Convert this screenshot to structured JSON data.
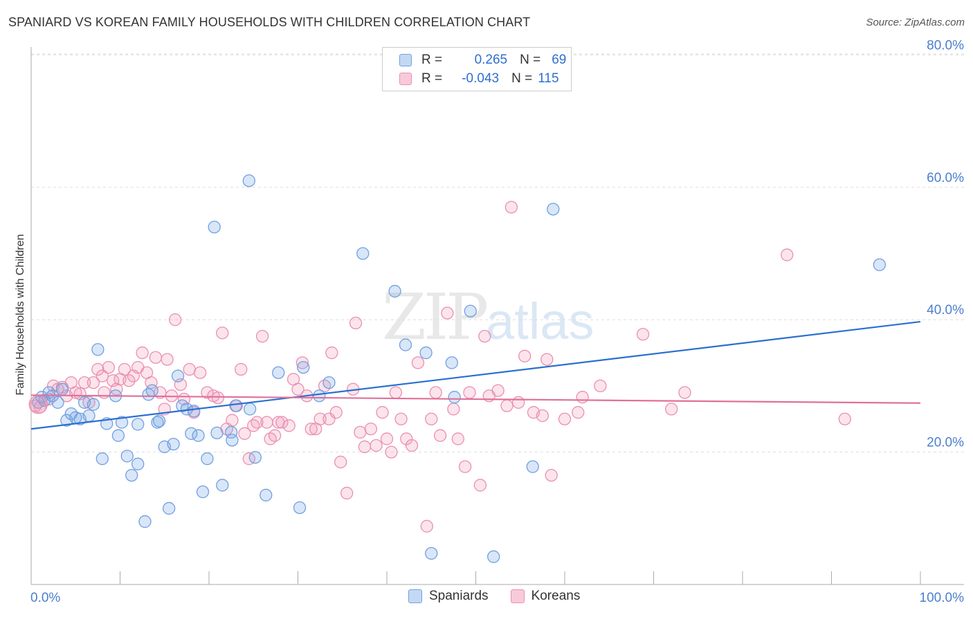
{
  "title": "SPANIARD VS KOREAN FAMILY HOUSEHOLDS WITH CHILDREN CORRELATION CHART",
  "source": "Source: ZipAtlas.com",
  "watermark": {
    "zip": "ZIP",
    "atlas": "atlas"
  },
  "legend": {
    "rows": [
      {
        "r_label": "R =",
        "r_value": "0.265",
        "n_label": "N =",
        "n_value": "69",
        "color": "#6fa0e0"
      },
      {
        "r_label": "R =",
        "r_value": "-0.043",
        "n_label": "N =",
        "n_value": "115",
        "color": "#eb8fb0"
      }
    ]
  },
  "bottom_legend": [
    {
      "label": "Spaniards",
      "color": "#6fa0e0"
    },
    {
      "label": "Koreans",
      "color": "#eb8fb0"
    }
  ],
  "chart_data": {
    "type": "scatter",
    "title": "SPANIARD VS KOREAN FAMILY HOUSEHOLDS WITH CHILDREN CORRELATION CHART",
    "xlabel": "",
    "ylabel": "Family Households with Children",
    "xlim": [
      0,
      100
    ],
    "ylim": [
      0,
      85
    ],
    "x_tick_labels": [
      "0.0%",
      "100.0%"
    ],
    "y_ticks": [
      20,
      40,
      60,
      80
    ],
    "y_tick_labels": [
      "20.0%",
      "40.0%",
      "60.0%",
      "80.0%"
    ],
    "grid": "horizontal dashed",
    "legend_position": "top-center",
    "series": [
      {
        "name": "Spaniards",
        "color": "#6fa0e0",
        "line_color": "#2a6fd0",
        "trend": {
          "x": [
            0,
            100
          ],
          "y": [
            23.5,
            39.7
          ]
        },
        "points": [
          [
            0.8,
            27.5
          ],
          [
            1.2,
            28.3
          ],
          [
            1.5,
            27.8
          ],
          [
            2.0,
            29.0
          ],
          [
            2.4,
            28.5
          ],
          [
            3.0,
            27.5
          ],
          [
            3.5,
            29.5
          ],
          [
            4.0,
            24.8
          ],
          [
            4.5,
            25.8
          ],
          [
            5.0,
            25.2
          ],
          [
            5.5,
            25.0
          ],
          [
            6.0,
            27.5
          ],
          [
            6.5,
            25.5
          ],
          [
            7.0,
            27.2
          ],
          [
            7.5,
            35.5
          ],
          [
            8.0,
            19.0
          ],
          [
            8.5,
            24.3
          ],
          [
            9.5,
            28.5
          ],
          [
            9.8,
            22.5
          ],
          [
            10.2,
            24.5
          ],
          [
            10.8,
            19.4
          ],
          [
            11.3,
            16.5
          ],
          [
            12.0,
            18.2
          ],
          [
            12.0,
            24.2
          ],
          [
            12.8,
            9.5
          ],
          [
            13.2,
            28.7
          ],
          [
            13.6,
            29.3
          ],
          [
            14.2,
            24.5
          ],
          [
            14.4,
            24.7
          ],
          [
            15.0,
            20.8
          ],
          [
            15.5,
            11.5
          ],
          [
            16.0,
            21.2
          ],
          [
            16.5,
            31.5
          ],
          [
            17.0,
            27.0
          ],
          [
            17.5,
            26.5
          ],
          [
            18.0,
            22.8
          ],
          [
            18.3,
            26.2
          ],
          [
            18.8,
            22.5
          ],
          [
            19.3,
            14.0
          ],
          [
            19.8,
            19.0
          ],
          [
            20.6,
            54.0
          ],
          [
            20.9,
            22.9
          ],
          [
            21.5,
            15.0
          ],
          [
            22.5,
            23.0
          ],
          [
            22.6,
            21.8
          ],
          [
            23.0,
            27.0
          ],
          [
            24.5,
            61.0
          ],
          [
            24.6,
            26.5
          ],
          [
            25.2,
            19.2
          ],
          [
            26.4,
            13.5
          ],
          [
            27.8,
            32.0
          ],
          [
            30.2,
            11.6
          ],
          [
            30.6,
            32.8
          ],
          [
            32.4,
            28.5
          ],
          [
            33.5,
            30.5
          ],
          [
            37.3,
            50.0
          ],
          [
            40.9,
            44.3
          ],
          [
            42.1,
            36.2
          ],
          [
            44.4,
            35.0
          ],
          [
            45.0,
            4.7
          ],
          [
            47.3,
            33.5
          ],
          [
            47.6,
            28.3
          ],
          [
            49.4,
            41.3
          ],
          [
            52.0,
            4.2
          ],
          [
            56.4,
            17.8
          ],
          [
            58.7,
            56.7
          ],
          [
            95.4,
            48.3
          ]
        ]
      },
      {
        "name": "Koreans",
        "color": "#eb8fb0",
        "line_color": "#e0709a",
        "trend": {
          "x": [
            0,
            100
          ],
          "y": [
            28.6,
            27.4
          ]
        },
        "points": [
          [
            0.5,
            27.0
          ],
          [
            1.0,
            26.8
          ],
          [
            1.5,
            27.8
          ],
          [
            2.0,
            28.0
          ],
          [
            2.5,
            30.0
          ],
          [
            3.0,
            29.5
          ],
          [
            3.5,
            29.8
          ],
          [
            4.0,
            28.5
          ],
          [
            4.5,
            30.5
          ],
          [
            5.0,
            29.0
          ],
          [
            5.5,
            28.8
          ],
          [
            6.0,
            30.5
          ],
          [
            6.5,
            27.5
          ],
          [
            7.0,
            30.5
          ],
          [
            7.5,
            32.5
          ],
          [
            8.0,
            31.5
          ],
          [
            8.2,
            29.0
          ],
          [
            8.7,
            32.8
          ],
          [
            9.2,
            30.8
          ],
          [
            9.6,
            29.5
          ],
          [
            10.0,
            31.0
          ],
          [
            10.5,
            32.5
          ],
          [
            11.0,
            30.8
          ],
          [
            11.5,
            31.5
          ],
          [
            12.0,
            32.8
          ],
          [
            12.5,
            35.0
          ],
          [
            13.0,
            32.0
          ],
          [
            13.5,
            30.5
          ],
          [
            14.0,
            34.3
          ],
          [
            14.5,
            29.0
          ],
          [
            15.0,
            26.5
          ],
          [
            15.3,
            34.0
          ],
          [
            15.8,
            28.5
          ],
          [
            16.2,
            40.0
          ],
          [
            16.8,
            30.2
          ],
          [
            17.2,
            28.0
          ],
          [
            17.8,
            32.5
          ],
          [
            18.3,
            26.0
          ],
          [
            19.0,
            32.0
          ],
          [
            19.8,
            29.0
          ],
          [
            20.5,
            28.5
          ],
          [
            21.0,
            28.2
          ],
          [
            21.5,
            38.0
          ],
          [
            22.0,
            23.5
          ],
          [
            22.6,
            24.8
          ],
          [
            23.1,
            27.0
          ],
          [
            23.6,
            32.5
          ],
          [
            24.0,
            22.8
          ],
          [
            24.5,
            19.0
          ],
          [
            25.0,
            24.0
          ],
          [
            25.4,
            24.5
          ],
          [
            26.0,
            37.5
          ],
          [
            26.5,
            24.5
          ],
          [
            26.9,
            22.0
          ],
          [
            27.4,
            22.5
          ],
          [
            27.8,
            24.5
          ],
          [
            28.2,
            24.5
          ],
          [
            29.0,
            24.0
          ],
          [
            29.5,
            31.0
          ],
          [
            30.0,
            29.5
          ],
          [
            30.5,
            33.5
          ],
          [
            31.0,
            28.5
          ],
          [
            31.5,
            23.5
          ],
          [
            32.0,
            23.5
          ],
          [
            32.5,
            25.0
          ],
          [
            33.0,
            30.0
          ],
          [
            33.5,
            25.0
          ],
          [
            33.8,
            35.0
          ],
          [
            34.3,
            26.0
          ],
          [
            34.8,
            18.5
          ],
          [
            35.5,
            13.8
          ],
          [
            36.2,
            29.5
          ],
          [
            36.5,
            39.5
          ],
          [
            37.0,
            23.0
          ],
          [
            37.5,
            20.8
          ],
          [
            38.2,
            23.5
          ],
          [
            38.8,
            21.0
          ],
          [
            39.5,
            26.0
          ],
          [
            40.0,
            22.0
          ],
          [
            40.5,
            20.0
          ],
          [
            41.0,
            29.0
          ],
          [
            41.6,
            25.0
          ],
          [
            42.2,
            22.0
          ],
          [
            42.8,
            21.0
          ],
          [
            43.5,
            33.5
          ],
          [
            44.5,
            8.8
          ],
          [
            45.0,
            25.0
          ],
          [
            45.5,
            29.0
          ],
          [
            46.0,
            22.5
          ],
          [
            46.8,
            41.0
          ],
          [
            47.5,
            26.5
          ],
          [
            48.0,
            22.0
          ],
          [
            48.8,
            17.8
          ],
          [
            49.3,
            29.0
          ],
          [
            50.5,
            15.0
          ],
          [
            51.0,
            37.5
          ],
          [
            51.5,
            28.5
          ],
          [
            52.5,
            29.3
          ],
          [
            53.5,
            27.0
          ],
          [
            54.0,
            57.0
          ],
          [
            54.8,
            27.5
          ],
          [
            55.5,
            34.5
          ],
          [
            56.5,
            26.0
          ],
          [
            57.5,
            25.5
          ],
          [
            58.0,
            34.0
          ],
          [
            58.5,
            16.5
          ],
          [
            60.0,
            25.0
          ],
          [
            61.5,
            26.0
          ],
          [
            62.0,
            28.3
          ],
          [
            64.0,
            30.0
          ],
          [
            68.8,
            37.8
          ],
          [
            72.0,
            26.5
          ],
          [
            73.5,
            29.0
          ],
          [
            85.0,
            49.8
          ],
          [
            91.5,
            25.0
          ]
        ]
      }
    ]
  }
}
